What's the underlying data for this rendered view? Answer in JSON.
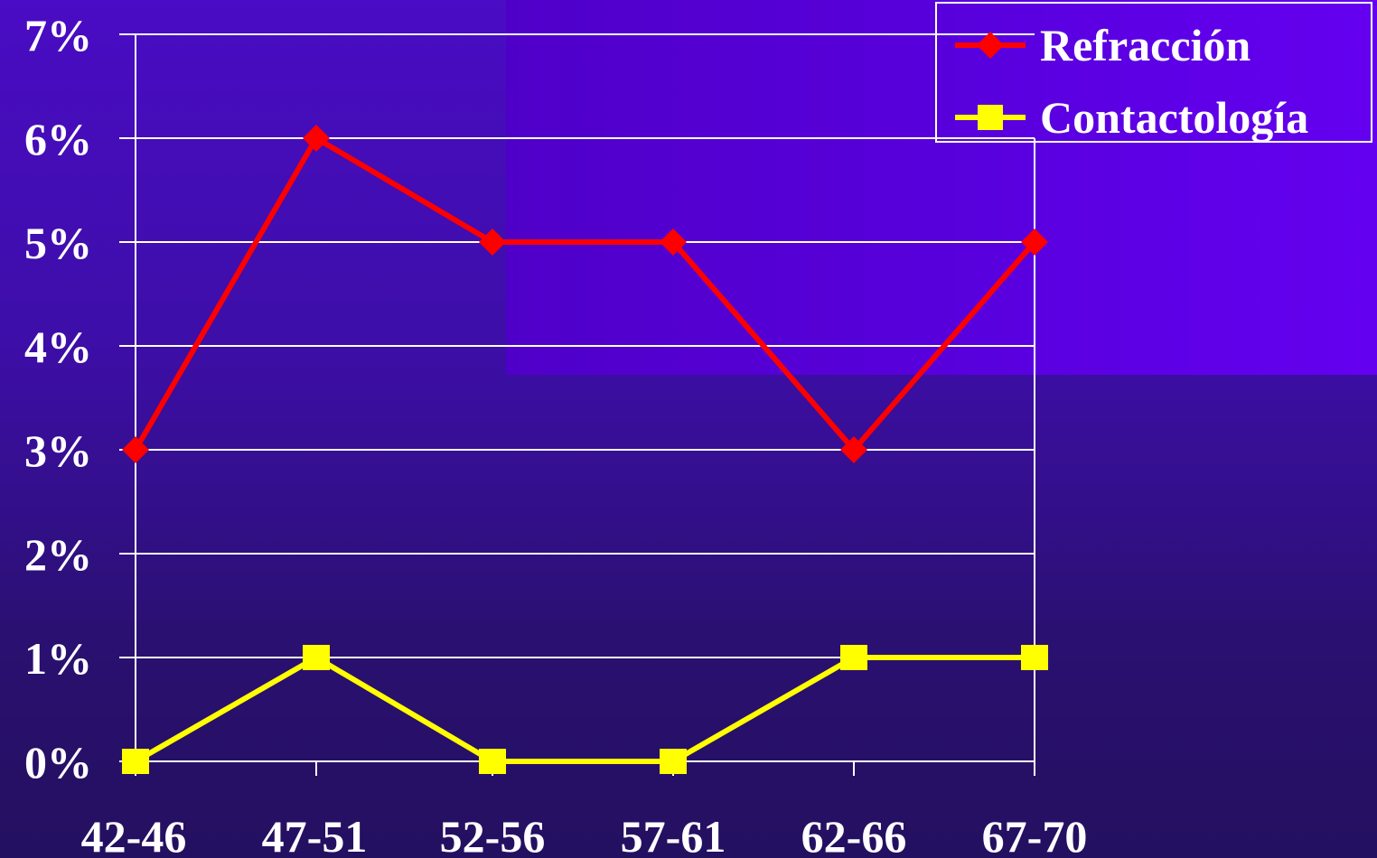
{
  "chart_data": {
    "type": "line",
    "categories": [
      "42-46",
      "47-51",
      "52-56",
      "57-61",
      "62-66",
      "67-70"
    ],
    "series": [
      {
        "name": "Refracción",
        "values": [
          3,
          6,
          5,
          5,
          3,
          5
        ],
        "color": "#ff0000",
        "marker": "diamond"
      },
      {
        "name": "Contactología",
        "values": [
          0,
          1,
          0,
          0,
          1,
          1
        ],
        "color": "#ffff00",
        "marker": "square"
      }
    ],
    "yticks": [
      "0%",
      "1%",
      "2%",
      "3%",
      "4%",
      "5%",
      "6%",
      "7%"
    ],
    "ylim": [
      0,
      7
    ],
    "y_unit": "%",
    "grid": true,
    "legend_position": "top-right",
    "gridline_color": "#ffffff",
    "text_color": "#ffffff"
  }
}
